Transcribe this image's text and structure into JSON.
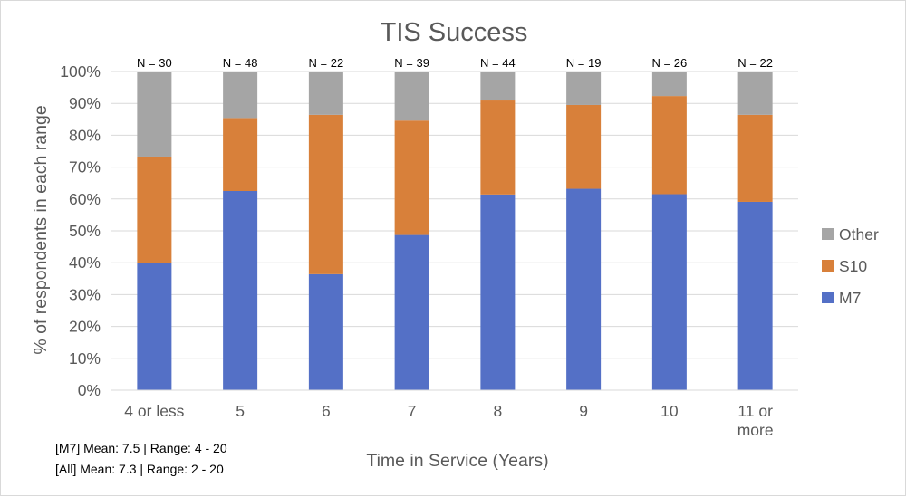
{
  "chart_data": {
    "type": "bar",
    "stacked": true,
    "title": "TIS Success",
    "xlabel": "Time in Service (Years)",
    "ylabel": "% of respondents in each range",
    "ylim": [
      0,
      100
    ],
    "yticks": [
      "0%",
      "10%",
      "20%",
      "30%",
      "40%",
      "50%",
      "60%",
      "70%",
      "80%",
      "90%",
      "100%"
    ],
    "categories": [
      [
        "4 or less"
      ],
      [
        "5"
      ],
      [
        "6"
      ],
      [
        "7"
      ],
      [
        "8"
      ],
      [
        "9"
      ],
      [
        "10"
      ],
      [
        "11 or",
        "more"
      ]
    ],
    "n_labels": [
      "N = 30",
      "N = 48",
      "N = 22",
      "N = 39",
      "N = 44",
      "N = 19",
      "N = 26",
      "N = 22"
    ],
    "series": [
      {
        "name": "M7",
        "color": "#5470c6",
        "values": [
          40,
          62.5,
          36.4,
          48.7,
          61.4,
          63.2,
          61.5,
          59.1
        ]
      },
      {
        "name": "S10",
        "color": "#d8803a",
        "values": [
          33.3,
          22.9,
          50.0,
          35.9,
          29.5,
          26.3,
          30.8,
          27.3
        ]
      },
      {
        "name": "Other",
        "color": "#a5a5a5",
        "values": [
          26.7,
          14.6,
          13.6,
          15.4,
          9.1,
          10.5,
          7.7,
          13.6
        ]
      }
    ],
    "legend": [
      "Other",
      "S10",
      "M7"
    ],
    "legend_position": "right",
    "grid": true
  },
  "notes": {
    "m7_stats": "[M7] Mean: 7.5 | Range: 4 - 20",
    "all_stats": "[All] Mean: 7.3 | Range: 2 - 20"
  }
}
